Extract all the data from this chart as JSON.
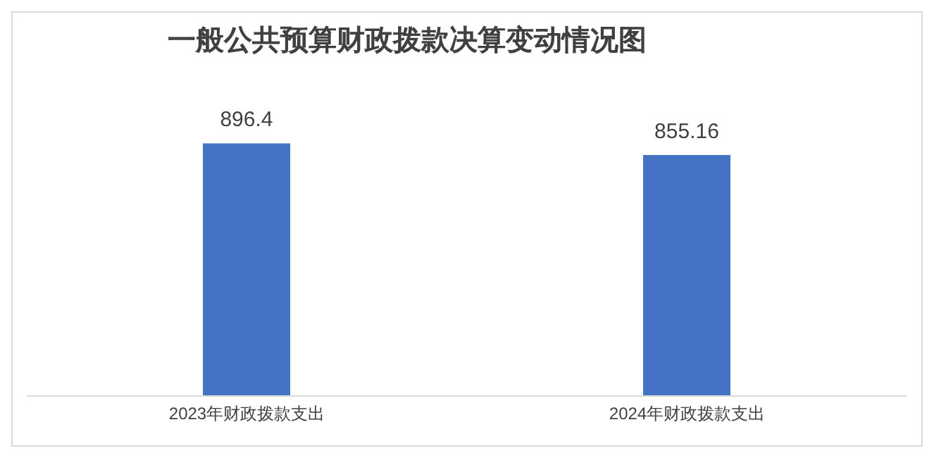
{
  "chart_data": {
    "type": "bar",
    "title": "一般公共预算财政拨款决算变动情况图",
    "categories": [
      "2023年财政拨款支出",
      "2024年财政拨款支出"
    ],
    "values": [
      896.4,
      855.16
    ],
    "color": "#4472c4",
    "data_labels": true
  }
}
